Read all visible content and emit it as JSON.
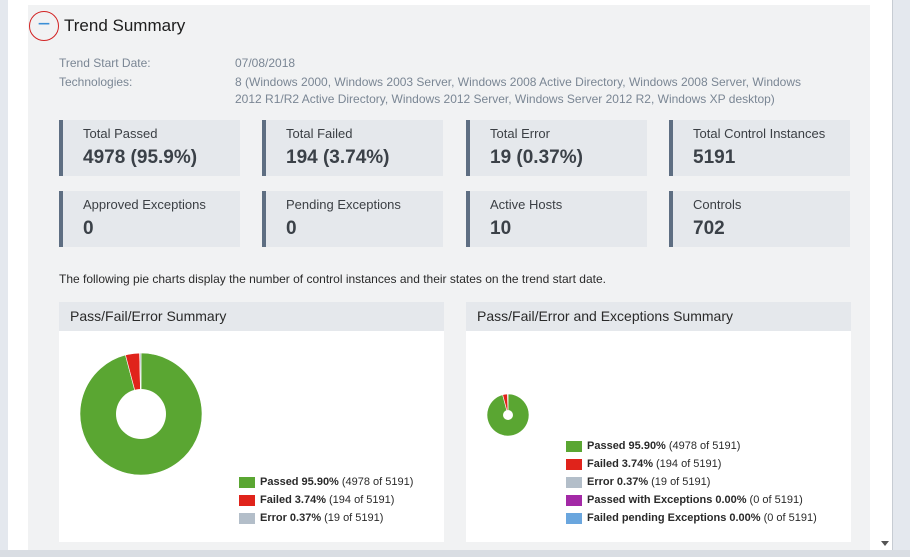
{
  "section": {
    "title": "Trend Summary",
    "toggle_symbol": "−"
  },
  "meta": {
    "start_date_label": "Trend Start Date:",
    "start_date_value": "07/08/2018",
    "technologies_label": "Technologies:",
    "technologies_value": "8 (Windows 2000, Windows 2003 Server, Windows 2008 Active Directory, Windows 2008 Server, Windows 2012 R1/R2 Active Directory, Windows 2012 Server, Windows Server 2012 R2, Windows XP desktop)"
  },
  "stats": [
    {
      "label": "Total Passed",
      "value": "4978 (95.9%)"
    },
    {
      "label": "Total Failed",
      "value": "194 (3.74%)"
    },
    {
      "label": "Total Error",
      "value": "19 (0.37%)"
    },
    {
      "label": "Total Control Instances",
      "value": "5191"
    },
    {
      "label": "Approved Exceptions",
      "value": "0"
    },
    {
      "label": "Pending Exceptions",
      "value": "0"
    },
    {
      "label": "Active Hosts",
      "value": "10"
    },
    {
      "label": "Controls",
      "value": "702"
    }
  ],
  "pie_note": "The following pie charts display the number of control instances and their states on the trend start date.",
  "colors": {
    "passed": "#5aa632",
    "failed": "#e0231b",
    "error": "#b3bec9",
    "passed_exc": "#a329a6",
    "failed_pending": "#6aa6de"
  },
  "chart_data": [
    {
      "type": "pie",
      "title": "Pass/Fail/Error Summary",
      "series": [
        {
          "name": "Passed",
          "value": 4978,
          "pct": "95.90%",
          "detail": "(4978 of 5191)",
          "color": "#5aa632"
        },
        {
          "name": "Failed",
          "value": 194,
          "pct": "3.74%",
          "detail": "(194 of 5191)",
          "color": "#e0231b"
        },
        {
          "name": "Error",
          "value": 19,
          "pct": "0.37%",
          "detail": "(19 of 5191)",
          "color": "#b3bec9"
        }
      ]
    },
    {
      "type": "pie",
      "title": "Pass/Fail/Error and Exceptions Summary",
      "series": [
        {
          "name": "Passed",
          "value": 4978,
          "pct": "95.90%",
          "detail": "(4978 of 5191)",
          "color": "#5aa632"
        },
        {
          "name": "Failed",
          "value": 194,
          "pct": "3.74%",
          "detail": "(194 of 5191)",
          "color": "#e0231b"
        },
        {
          "name": "Error",
          "value": 19,
          "pct": "0.37%",
          "detail": "(19 of 5191)",
          "color": "#b3bec9"
        },
        {
          "name": "Passed with Exceptions",
          "value": 0,
          "pct": "0.00%",
          "detail": "(0 of 5191)",
          "color": "#a329a6"
        },
        {
          "name": "Failed pending Exceptions",
          "value": 0,
          "pct": "0.00%",
          "detail": "(0 of 5191)",
          "color": "#6aa6de"
        }
      ]
    }
  ]
}
